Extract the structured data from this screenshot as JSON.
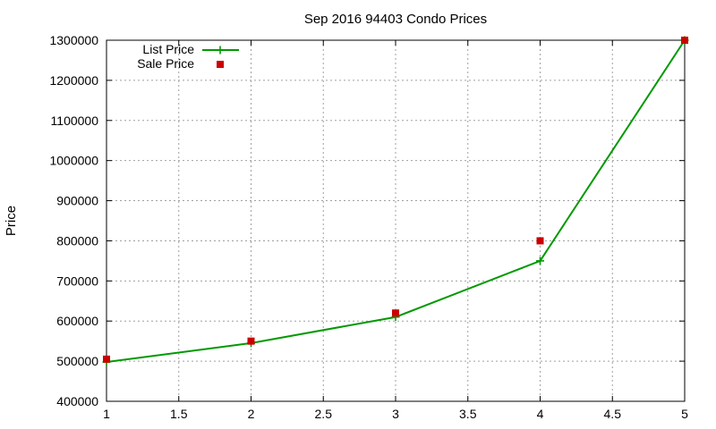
{
  "chart_data": {
    "type": "line",
    "title": "Sep 2016 94403 Condo Prices",
    "xlabel": "",
    "ylabel": "Price",
    "xlim": [
      1,
      5
    ],
    "ylim": [
      400000,
      1300000
    ],
    "x_ticks": [
      "1",
      "1.5",
      "2",
      "2.5",
      "3",
      "3.5",
      "4",
      "4.5",
      "5"
    ],
    "y_ticks": [
      "400000",
      "500000",
      "600000",
      "700000",
      "800000",
      "900000",
      "1000000",
      "1100000",
      "1200000",
      "1300000"
    ],
    "grid": true,
    "legend_position": "top-left",
    "series": [
      {
        "name": "List Price",
        "kind": "line+points",
        "marker": "plus",
        "color": "#009900",
        "x": [
          1,
          2,
          3,
          4,
          5
        ],
        "y": [
          498000,
          545000,
          610000,
          750000,
          1300000
        ]
      },
      {
        "name": "Sale Price",
        "kind": "points",
        "marker": "square",
        "color": "#cc0000",
        "x": [
          1,
          2,
          3,
          4,
          5
        ],
        "y": [
          505000,
          550000,
          620000,
          800000,
          1300000
        ]
      }
    ]
  }
}
